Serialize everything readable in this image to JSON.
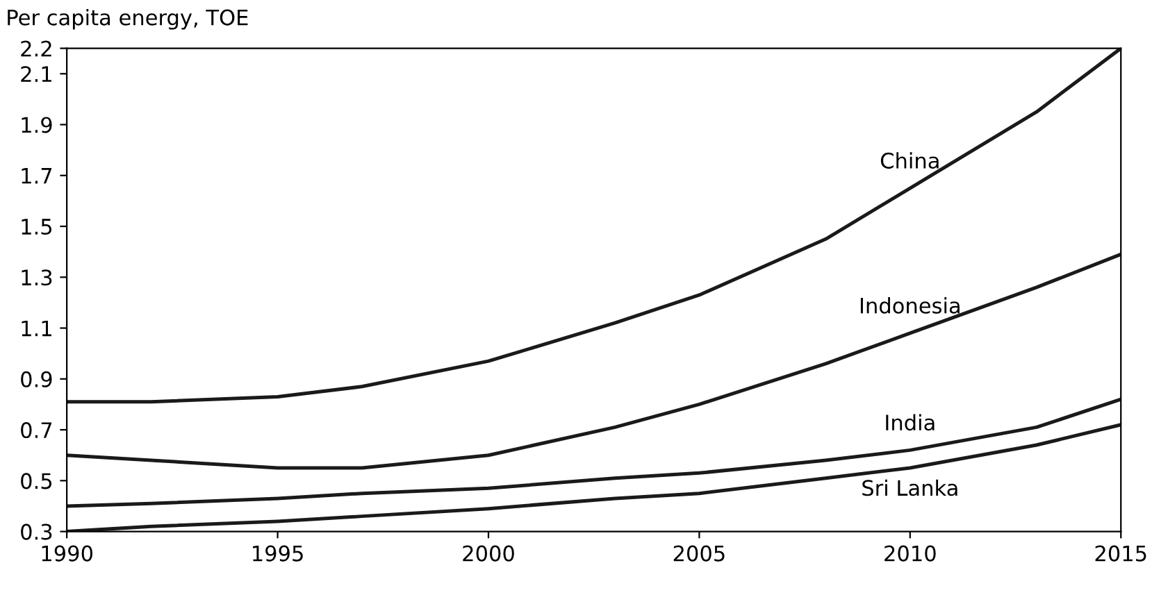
{
  "chart_data": {
    "type": "line",
    "ylabel": "Per capita energy, TOE",
    "x": [
      1990,
      1992,
      1995,
      1997,
      2000,
      2003,
      2005,
      2008,
      2010,
      2013,
      2015
    ],
    "series": [
      {
        "name": "China",
        "color": "#1a1a1a",
        "values": [
          0.81,
          0.81,
          0.83,
          0.87,
          0.97,
          1.12,
          1.23,
          1.45,
          1.65,
          1.95,
          2.2
        ]
      },
      {
        "name": "Indonesia",
        "color": "#1a1a1a",
        "values": [
          0.6,
          0.58,
          0.55,
          0.55,
          0.6,
          0.71,
          0.8,
          0.96,
          1.08,
          1.26,
          1.39
        ]
      },
      {
        "name": "India",
        "color": "#1a1a1a",
        "values": [
          0.4,
          0.41,
          0.43,
          0.45,
          0.47,
          0.51,
          0.53,
          0.58,
          0.62,
          0.71,
          0.82
        ]
      },
      {
        "name": "Sri Lanka",
        "color": "#1a1a1a",
        "values": [
          0.3,
          0.32,
          0.34,
          0.36,
          0.39,
          0.43,
          0.45,
          0.51,
          0.55,
          0.64,
          0.72
        ]
      }
    ],
    "xlim": [
      1990,
      2015
    ],
    "xticks": [
      1990,
      1995,
      2000,
      2005,
      2010,
      2015
    ],
    "ylim": [
      0.3,
      2.2
    ],
    "yticks": [
      0.3,
      0.5,
      0.7,
      0.9,
      1.1,
      1.3,
      1.5,
      1.7,
      1.9,
      2.1,
      2.2
    ],
    "grid": false,
    "legend": false,
    "marker": "none",
    "line_style": "solid"
  }
}
